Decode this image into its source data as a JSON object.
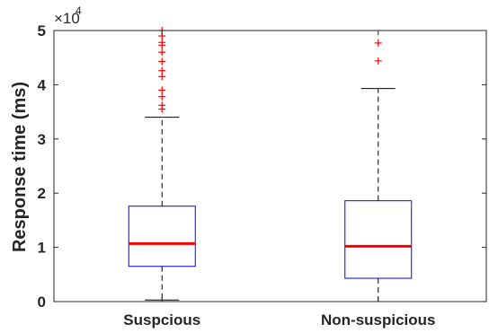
{
  "chart_data": {
    "type": "box",
    "title": "",
    "xlabel": "",
    "ylabel": "Response time (ms)",
    "y_multiplier": {
      "base": "×10",
      "exponent": "4"
    },
    "ylim": [
      0,
      50000
    ],
    "y_ticks": [
      0,
      10000,
      20000,
      30000,
      40000,
      50000
    ],
    "y_tick_labels": [
      "0",
      "1",
      "2",
      "3",
      "4",
      "5"
    ],
    "categories": [
      "Suspcious",
      "Non-suspicious"
    ],
    "boxes": [
      {
        "name": "Suspcious",
        "whisker_low": 300,
        "q1": 6500,
        "median": 10700,
        "q3": 17600,
        "whisker_high": 34000,
        "outliers": [
          35500,
          36200,
          37800,
          39000,
          41500,
          42600,
          44300,
          46000,
          47300,
          47800,
          49000,
          50000
        ]
      },
      {
        "name": "Non-suspicious",
        "whisker_low": 0,
        "q1": 4300,
        "median": 10200,
        "q3": 18600,
        "whisker_high": 39300,
        "outliers": [
          44400,
          47700
        ]
      }
    ],
    "colors": {
      "box": "#0000ff",
      "median": "#ff0000",
      "outlier": "#ff0000",
      "whisker": "#000000"
    },
    "grid": false,
    "legend": "none"
  }
}
